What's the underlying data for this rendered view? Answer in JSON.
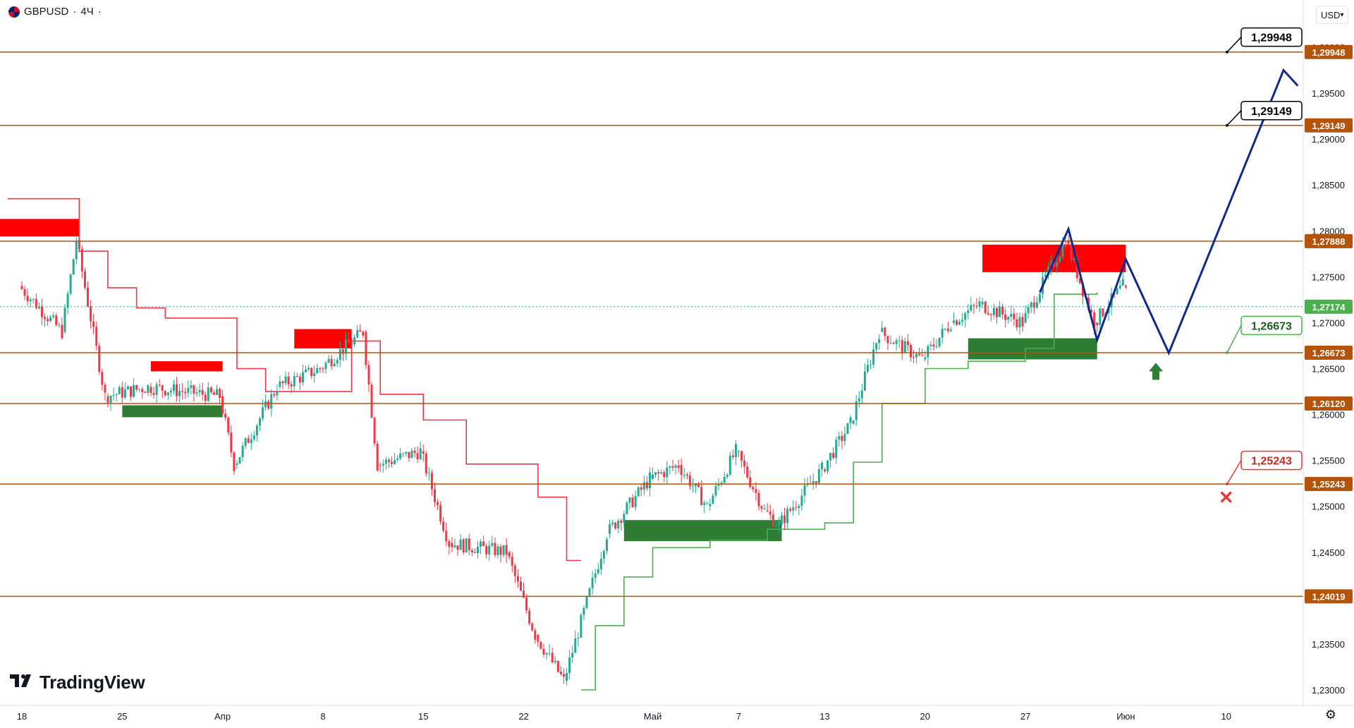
{
  "header": {
    "symbol": "GBPUSD",
    "separator1": "·",
    "timeframe": "4Ч",
    "separator2": "·"
  },
  "currency_button": {
    "label": "USD",
    "icon": "chevron-down-icon"
  },
  "logo": {
    "text": "TradingView",
    "icon": "tradingview-logo-icon"
  },
  "settings_icon": "gear-icon",
  "colors": {
    "level_line": "#b45309",
    "level_label_bg": "#b45309",
    "bull": "#22ab94",
    "bear": "#f23645",
    "supply_zone": "#ff0000",
    "demand_zone": "#2e7d32",
    "projection": "#0d2a8c",
    "st_up": "#4caf50",
    "st_down": "#f23645",
    "last_price_bg": "#4caf50"
  },
  "chart_data": {
    "type": "candlestick",
    "instrument": "GBPUSD",
    "interval": "4Ч",
    "ylim": [
      1.2295,
      1.3005
    ],
    "yticks": [
      "1,23000",
      "1,23500",
      "1,24000",
      "1,24500",
      "1,25000",
      "1,25500",
      "1,26000",
      "1,26500",
      "1,27000",
      "1,27500",
      "1,28000",
      "1,28500",
      "1,29000",
      "1,29500",
      "1,30000"
    ],
    "xticks": [
      "18",
      "25",
      "Апр",
      "8",
      "15",
      "22",
      "Май",
      "7",
      "13",
      "20",
      "27",
      "Июн",
      "10"
    ],
    "horizontal_levels": [
      {
        "value": 1.29948,
        "label": "1,29948"
      },
      {
        "value": 1.29149,
        "label": "1,29149"
      },
      {
        "value": 1.27888,
        "label": "1,27888"
      },
      {
        "value": 1.26673,
        "label": "1,26673"
      },
      {
        "value": 1.2612,
        "label": "1,26120"
      },
      {
        "value": 1.25243,
        "label": "1,25243"
      },
      {
        "value": 1.24019,
        "label": "1,24019"
      }
    ],
    "last_price": {
      "value": 1.27174,
      "label": "1,27174"
    },
    "callouts": [
      {
        "label": "1,29948",
        "kind": "target"
      },
      {
        "label": "1,29149",
        "kind": "target"
      },
      {
        "label": "1,26673",
        "kind": "entry"
      },
      {
        "label": "1,25243",
        "kind": "stop"
      }
    ],
    "projection_path": [
      {
        "date": "May 28",
        "price": 1.2733
      },
      {
        "date": "May 30",
        "price": 1.2802
      },
      {
        "date": "Jun 1",
        "price": 1.2681
      },
      {
        "date": "Jun 3",
        "price": 1.2769
      },
      {
        "date": "Jun 6",
        "price": 1.2667
      },
      {
        "date": "Jun 14",
        "price": 1.2975
      },
      {
        "date": "Jun 15",
        "price": 1.2958
      }
    ]
  }
}
